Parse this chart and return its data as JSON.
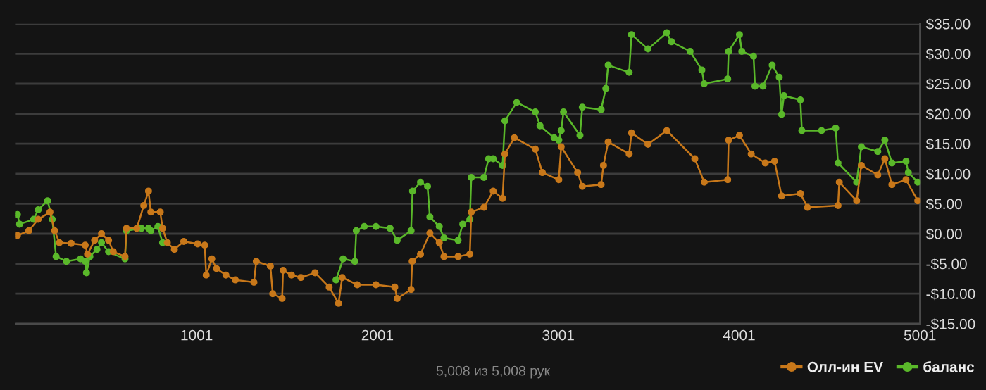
{
  "chart_data": {
    "type": "line",
    "xlim": [
      1,
      5001
    ],
    "xticks": [
      1001,
      2001,
      3001,
      4001,
      5001
    ],
    "ylim": [
      -15,
      35
    ],
    "yticks": [
      {
        "value": -15,
        "label": "-$15.00"
      },
      {
        "value": -10,
        "label": "-$10.00"
      },
      {
        "value": -5,
        "label": "-$5.00"
      },
      {
        "value": 0,
        "label": "$0.00"
      },
      {
        "value": 5,
        "label": "$5.00"
      },
      {
        "value": 10,
        "label": "$10.00"
      },
      {
        "value": 15,
        "label": "$15.00"
      },
      {
        "value": 20,
        "label": "$20.00"
      },
      {
        "value": 25,
        "label": "$25.00"
      },
      {
        "value": 30,
        "label": "$30.00"
      },
      {
        "value": 35,
        "label": "$35.00"
      }
    ],
    "grid": "y",
    "legend": "bottom right",
    "marker": "circle",
    "line_style": "solid",
    "annotations": [
      "5,008 из 5,008 рук"
    ],
    "series": [
      {
        "name": "баланс",
        "color": "#5ab82a",
        "x": [
          10,
          22,
          100,
          125,
          177,
          203,
          224,
          281,
          359,
          385,
          392,
          411,
          450,
          475,
          514,
          605,
          613,
          696,
          735,
          748,
          787,
          813,
          1000,
          1772,
          1811,
          1876,
          1884,
          1928,
          1993,
          2071,
          2110,
          2187,
          2195,
          2239,
          2278,
          2291,
          2343,
          2369,
          2447,
          2473,
          2512,
          2520,
          2590,
          2616,
          2641,
          2693,
          2706,
          2771,
          2874,
          2900,
          2978,
          3004,
          3017,
          3030,
          3121,
          3134,
          3238,
          3264,
          3277,
          3393,
          3406,
          3497,
          3601,
          3627,
          3730,
          3795,
          3808,
          3938,
          3943,
          4003,
          4016,
          4081,
          4089,
          4133,
          4184,
          4223,
          4236,
          4249,
          4340,
          4348,
          4457,
          4535,
          4548,
          4651,
          4677,
          4768,
          4807,
          4846,
          4924,
          4937,
          4989
        ],
        "values": [
          3.2,
          1.6,
          2.4,
          4.0,
          5.5,
          2.4,
          -3.8,
          -4.6,
          -4.2,
          -4.6,
          -6.5,
          -3.8,
          -2.6,
          -1.5,
          -3.0,
          -4.2,
          0.5,
          0.9,
          0.9,
          0.5,
          1.2,
          -1.5,
          null,
          -7.7,
          -4.2,
          -4.6,
          0.5,
          1.2,
          1.2,
          0.9,
          -1.1,
          0.5,
          7.1,
          8.6,
          7.9,
          2.8,
          1.2,
          -0.7,
          -1.1,
          1.6,
          2.4,
          9.4,
          9.4,
          12.5,
          12.5,
          11.4,
          18.8,
          21.9,
          20.3,
          18.0,
          16.0,
          15.6,
          17.2,
          20.3,
          16.4,
          21.1,
          20.7,
          24.2,
          28.1,
          26.9,
          33.2,
          30.8,
          33.5,
          32.0,
          30.4,
          27.3,
          25.0,
          25.8,
          30.4,
          33.2,
          30.4,
          29.6,
          24.6,
          24.6,
          28.1,
          26.1,
          19.9,
          23.0,
          22.3,
          17.2,
          17.2,
          17.6,
          11.8,
          8.6,
          14.5,
          13.7,
          15.6,
          11.8,
          12.1,
          10.2,
          8.6
        ]
      },
      {
        "name": "Олл-ин EV",
        "color": "#c8781a",
        "x": [
          10,
          73,
          125,
          190,
          216,
          242,
          307,
          385,
          398,
          437,
          475,
          514,
          540,
          605,
          613,
          670,
          709,
          735,
          748,
          800,
          813,
          839,
          878,
          930,
          1007,
          1046,
          1054,
          1085,
          1111,
          1163,
          1215,
          1318,
          1331,
          1409,
          1422,
          1474,
          1479,
          1526,
          1578,
          1656,
          1734,
          1786,
          1806,
          1889,
          1993,
          2097,
          2110,
          2187,
          2193,
          2239,
          2291,
          2343,
          2369,
          2447,
          2512,
          2520,
          2590,
          2641,
          2693,
          2706,
          2758,
          2874,
          2913,
          3004,
          3017,
          3108,
          3134,
          3238,
          3251,
          3277,
          3393,
          3406,
          3497,
          3601,
          3756,
          3808,
          3938,
          3943,
          4003,
          4068,
          4146,
          4197,
          4236,
          4340,
          4379,
          4548,
          4555,
          4651,
          4677,
          4768,
          4807,
          4846,
          4924,
          4989
        ],
        "values": [
          -0.3,
          0.5,
          2.4,
          3.6,
          0.5,
          -1.5,
          -1.6,
          -1.9,
          -3.4,
          -1.1,
          0.0,
          -1.1,
          -3.0,
          -3.8,
          0.9,
          0.9,
          4.7,
          7.1,
          3.6,
          3.6,
          0.9,
          -1.5,
          -2.6,
          -1.3,
          -1.7,
          -1.9,
          -6.9,
          -4.2,
          -5.8,
          -6.9,
          -7.7,
          -8.1,
          -4.6,
          -5.4,
          -10.0,
          -10.8,
          -6.1,
          -6.9,
          -7.3,
          -6.5,
          -8.9,
          -11.6,
          -7.3,
          -8.5,
          -8.5,
          -8.9,
          -10.8,
          -9.3,
          -4.6,
          -3.4,
          0.1,
          -1.5,
          -3.8,
          -3.8,
          -3.4,
          3.6,
          4.4,
          7.1,
          5.9,
          13.3,
          16.0,
          14.1,
          10.2,
          9.0,
          14.5,
          10.2,
          7.9,
          8.2,
          11.4,
          15.3,
          13.3,
          16.8,
          14.9,
          17.2,
          12.5,
          8.6,
          9.0,
          15.6,
          16.4,
          13.3,
          11.8,
          12.1,
          6.3,
          6.7,
          4.4,
          4.7,
          8.6,
          5.5,
          11.4,
          9.8,
          12.5,
          8.2,
          9.0,
          5.5
        ]
      }
    ]
  }
}
